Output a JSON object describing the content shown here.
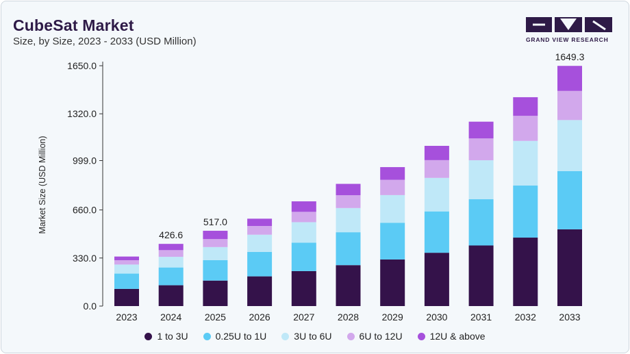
{
  "header": {
    "title": "CubeSat Market",
    "subtitle": "Size, by Size, 2023 - 2033 (USD Million)"
  },
  "brand": {
    "name": "GRAND VIEW RESEARCH",
    "color": "#2e1a47"
  },
  "chart_data": {
    "type": "bar",
    "stacked": true,
    "categories": [
      "2023",
      "2024",
      "2025",
      "2026",
      "2027",
      "2028",
      "2029",
      "2030",
      "2031",
      "2032",
      "2033"
    ],
    "series": [
      {
        "name": "1 to 3U",
        "color": "#34124a",
        "values": [
          118,
          143,
          175,
          204,
          240,
          281,
          320,
          366,
          416,
          470,
          527
        ]
      },
      {
        "name": "0.25U to 1U",
        "color": "#5bcbf5",
        "values": [
          105,
          122,
          140,
          168,
          195,
          226,
          252,
          284,
          318,
          358,
          400
        ]
      },
      {
        "name": "3U to 6U",
        "color": "#bfe8f8",
        "values": [
          62,
          73,
          90,
          118,
          141,
          166,
          190,
          230,
          267,
          306,
          350
        ]
      },
      {
        "name": "6U to 12U",
        "color": "#d2a8ec",
        "values": [
          30,
          46,
          55,
          60,
          71,
          88,
          105,
          122,
          150,
          172,
          200
        ]
      },
      {
        "name": "12U & above",
        "color": "#a650dc",
        "values": [
          25,
          43,
          57,
          50,
          72,
          78,
          87,
          98,
          115,
          128,
          172
        ]
      }
    ],
    "data_labels": {
      "2024": "426.6",
      "2025": "517.0",
      "2033": "1649.3"
    },
    "yticks": [
      "0.0",
      "330.0",
      "660.0",
      "999.0",
      "1320.0",
      "1650.0"
    ],
    "ytick_values": [
      0,
      330,
      660,
      999,
      1320,
      1650
    ],
    "ylim": [
      0,
      1650
    ],
    "xlabel": "",
    "ylabel": "Market Size (USD Million)",
    "grid": false,
    "legend_position": "bottom"
  }
}
